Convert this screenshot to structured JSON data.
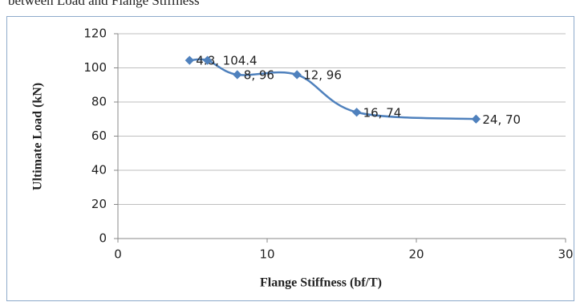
{
  "caption": "between Load and Flange Stiffness",
  "chart_data": {
    "type": "line",
    "xlabel": "Flange Stiffness (bf/T)",
    "ylabel": "Ultimate Load (kN)",
    "x": [
      4.8,
      6,
      8,
      12,
      16,
      24
    ],
    "values": [
      104.4,
      104.4,
      96,
      96,
      74,
      70
    ],
    "value_labels": [
      "4.8, 104.4",
      null,
      "8, 96",
      "12, 96",
      "16, 74",
      "24, 70"
    ],
    "color": "#4f81bd",
    "xlim": [
      0,
      30
    ],
    "xticks": [
      0,
      10,
      20,
      30
    ],
    "ylim": [
      0,
      120
    ],
    "yticks": [
      0,
      20,
      40,
      60,
      80,
      100,
      120
    ],
    "grid": true,
    "smooth": true
  }
}
